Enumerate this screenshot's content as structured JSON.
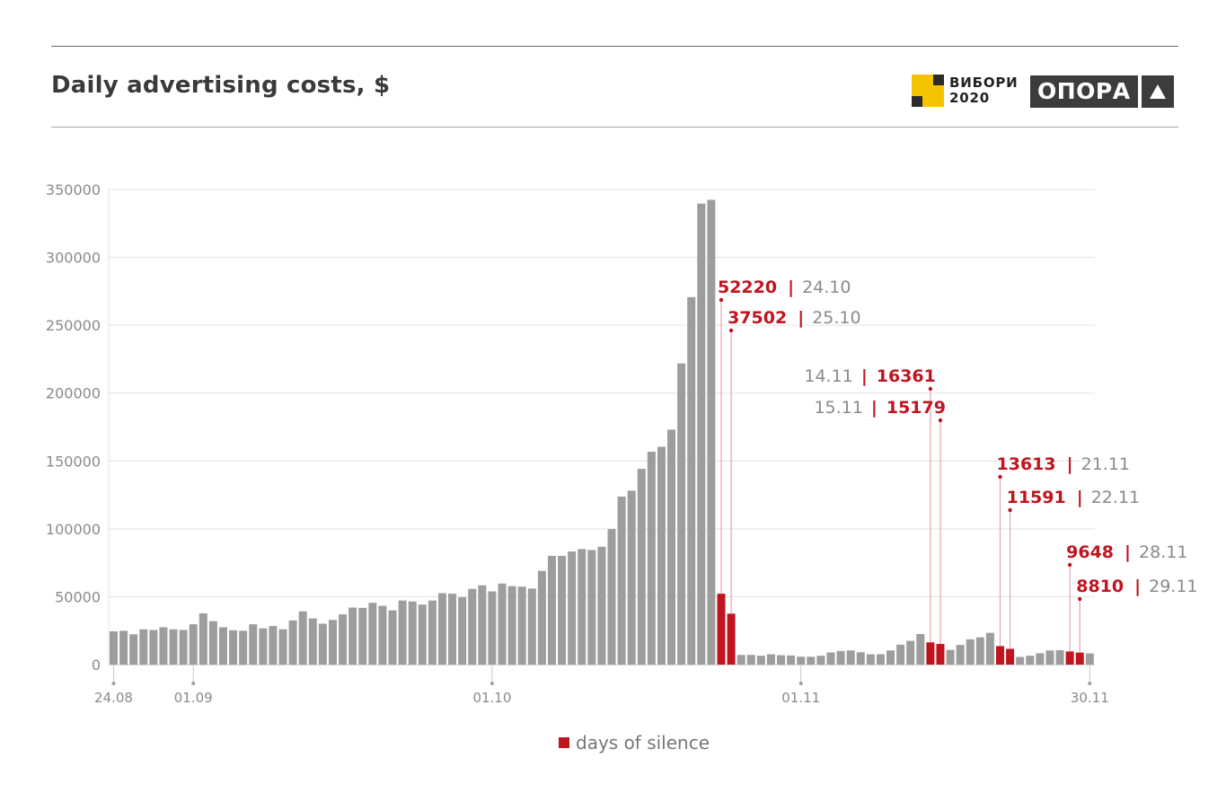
{
  "header": {
    "title": "Daily advertising costs, $",
    "logo_vybory": {
      "line1": "ВИБОРИ",
      "line2": "2020"
    },
    "logo_opora": {
      "word": "ОПОРА",
      "icon": "triangle-up-icon"
    }
  },
  "colors": {
    "regular_bar": "#9d9d9d",
    "silence_bar": "#c0141f",
    "silence_leader": "#e8a6ab",
    "grid": "#e3e3e3",
    "axis_text": "#8a8a8a",
    "logo_yellow": "#f5c400",
    "logo_dark": "#2b2b2b"
  },
  "legend": {
    "label": "days of silence"
  },
  "chart_data": {
    "type": "bar",
    "title": "Daily advertising costs, $",
    "xlabel": "",
    "ylabel": "",
    "ylim": [
      0,
      350000
    ],
    "yticks": [
      0,
      50000,
      100000,
      150000,
      200000,
      250000,
      300000,
      350000
    ],
    "ytick_labels": [
      "0",
      "50000",
      "100000",
      "150000",
      "200000",
      "250000",
      "300000",
      "350000"
    ],
    "grid": true,
    "x_start": "24.08",
    "x_end": "30.11",
    "xticks": [
      {
        "index": 0,
        "label": "24.08"
      },
      {
        "index": 8,
        "label": "01.09"
      },
      {
        "index": 38,
        "label": "01.10"
      },
      {
        "index": 69,
        "label": "01.11"
      },
      {
        "index": 98,
        "label": "30.11"
      }
    ],
    "legend_position": "bottom-center",
    "legend": [
      {
        "name": "days of silence",
        "color": "#c0141f"
      }
    ],
    "values": [
      24500,
      24900,
      22300,
      26000,
      25500,
      27500,
      26000,
      25500,
      29700,
      37700,
      32000,
      27500,
      25300,
      24900,
      29700,
      26700,
      28400,
      26000,
      32500,
      39200,
      34000,
      30100,
      32900,
      37000,
      42000,
      41800,
      45500,
      43300,
      40000,
      47200,
      46500,
      44200,
      47200,
      52600,
      52200,
      49600,
      55800,
      58400,
      53900,
      59700,
      57800,
      57400,
      56000,
      69000,
      80100,
      80100,
      83300,
      85100,
      84400,
      86800,
      99800,
      123800,
      128100,
      144200,
      156800,
      160500,
      173100,
      221900,
      270700,
      339600,
      342400,
      52220,
      37502,
      7100,
      7100,
      6500,
      7600,
      6900,
      6700,
      5800,
      5800,
      6500,
      8900,
      10000,
      10400,
      9100,
      7600,
      7600,
      10400,
      14700,
      17500,
      22500,
      16361,
      15179,
      10800,
      14500,
      18600,
      20100,
      23400,
      13613,
      11591,
      5600,
      6500,
      8400,
      10400,
      10600,
      9648,
      8810,
      8200
    ],
    "silence_days": [
      {
        "index": 61,
        "date": "24.10",
        "value": 52220,
        "label_side": "right"
      },
      {
        "index": 62,
        "date": "25.10",
        "value": 37502,
        "label_side": "right"
      },
      {
        "index": 82,
        "date": "14.11",
        "value": 16361,
        "label_side": "left"
      },
      {
        "index": 83,
        "date": "15.11",
        "value": 15179,
        "label_side": "left"
      },
      {
        "index": 89,
        "date": "21.11",
        "value": 13613,
        "label_side": "right"
      },
      {
        "index": 90,
        "date": "22.11",
        "value": 11591,
        "label_side": "right"
      },
      {
        "index": 96,
        "date": "28.11",
        "value": 9648,
        "label_side": "right"
      },
      {
        "index": 97,
        "date": "29.11",
        "value": 8810,
        "label_side": "right"
      }
    ]
  }
}
